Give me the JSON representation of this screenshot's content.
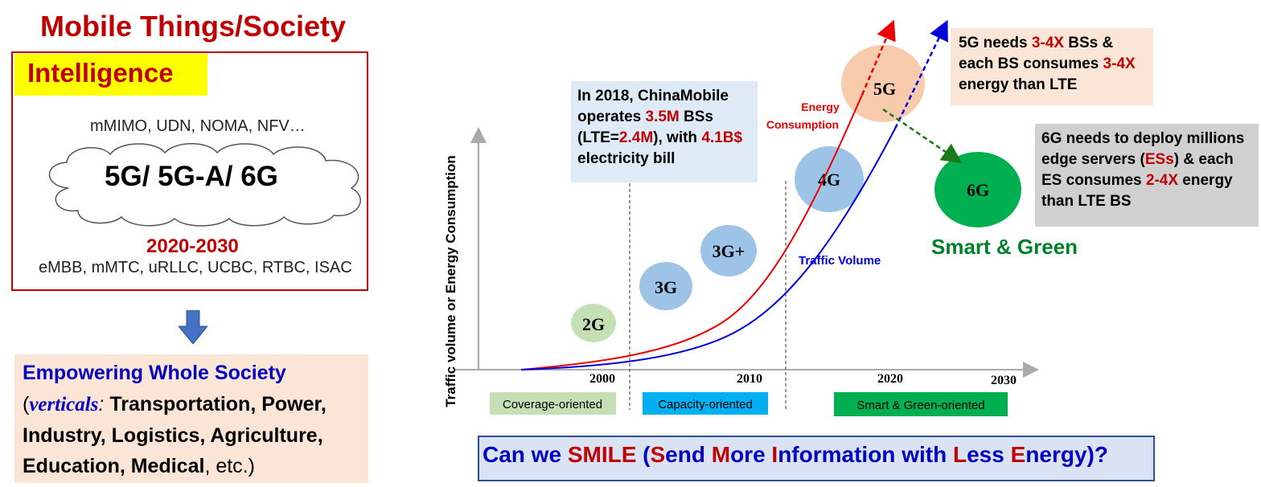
{
  "left": {
    "title": "Mobile Things/Society",
    "highlight": "Intelligence",
    "techs": "mMIMO, UDN, NOMA, NFV…",
    "cloud_text": "5G/ 5G-A/ 6G",
    "years": "2020-2030",
    "use_cases": "eMBB, mMTC, uRLLC, UCBC, RTBC, ISAC",
    "empower_title": "Empowering Whole Society",
    "empower_open": "(",
    "verticals_word": "verticals",
    "verticals_colon": ":",
    "verticals_list": " Transportation, Power, Industry, Logistics, Agriculture, Education, Medical",
    "verticals_tail": ", etc.)"
  },
  "chart": {
    "ylabel": "Traffic volume or Energy Consumption",
    "years": [
      "2000",
      "2010",
      "2020",
      "2030"
    ],
    "generations": [
      "2G",
      "3G",
      "3G+",
      "4G",
      "5G",
      "6G"
    ],
    "curve_energy": "Energy Consumption",
    "curve_traffic": "Traffic Volume",
    "phases": [
      "Coverage-oriented",
      "Capacity-oriented",
      "Smart & Green-oriented"
    ],
    "colors": {
      "energy": "#ee0000",
      "traffic": "#0000dd",
      "green_arrow": "#1a7a1a",
      "bubble_blue": "#9dc3e6",
      "bubble_green": "#c5e0b4",
      "bubble_orange": "#f8cbad",
      "bubble_6g": "#00b050"
    }
  },
  "notes": {
    "chinamobile": {
      "p1": "In 2018, ",
      "org": "ChinaMobile",
      "p2": " operates ",
      "num1": "3.5M",
      "p3": " BSs (LTE=",
      "num2": "2.4M",
      "p4": "), with ",
      "num3": "4.1B$",
      "p5": " electricity bill"
    },
    "fiveg": {
      "p1": "5G needs ",
      "num1": "3-4X",
      "p2": " BSs & each BS consumes ",
      "num2": "3-4X",
      "p3": " energy than LTE"
    },
    "sixg": {
      "p1": "6G needs to deploy millions edge servers (",
      "num1": "ESs",
      "p2": ") & each ES consumes ",
      "num2": "2-4X",
      "p3": " energy than LTE BS"
    },
    "smart_green": "Smart & Green"
  },
  "smile": {
    "p1": "Can we ",
    "word": "SMILE",
    "p2": " (",
    "s": "S",
    "p3": "end ",
    "m": "M",
    "p4": "ore ",
    "i": "I",
    "p5": "nformation with ",
    "l": "L",
    "p6": "ess ",
    "e": "E",
    "p7": "nergy)?"
  }
}
